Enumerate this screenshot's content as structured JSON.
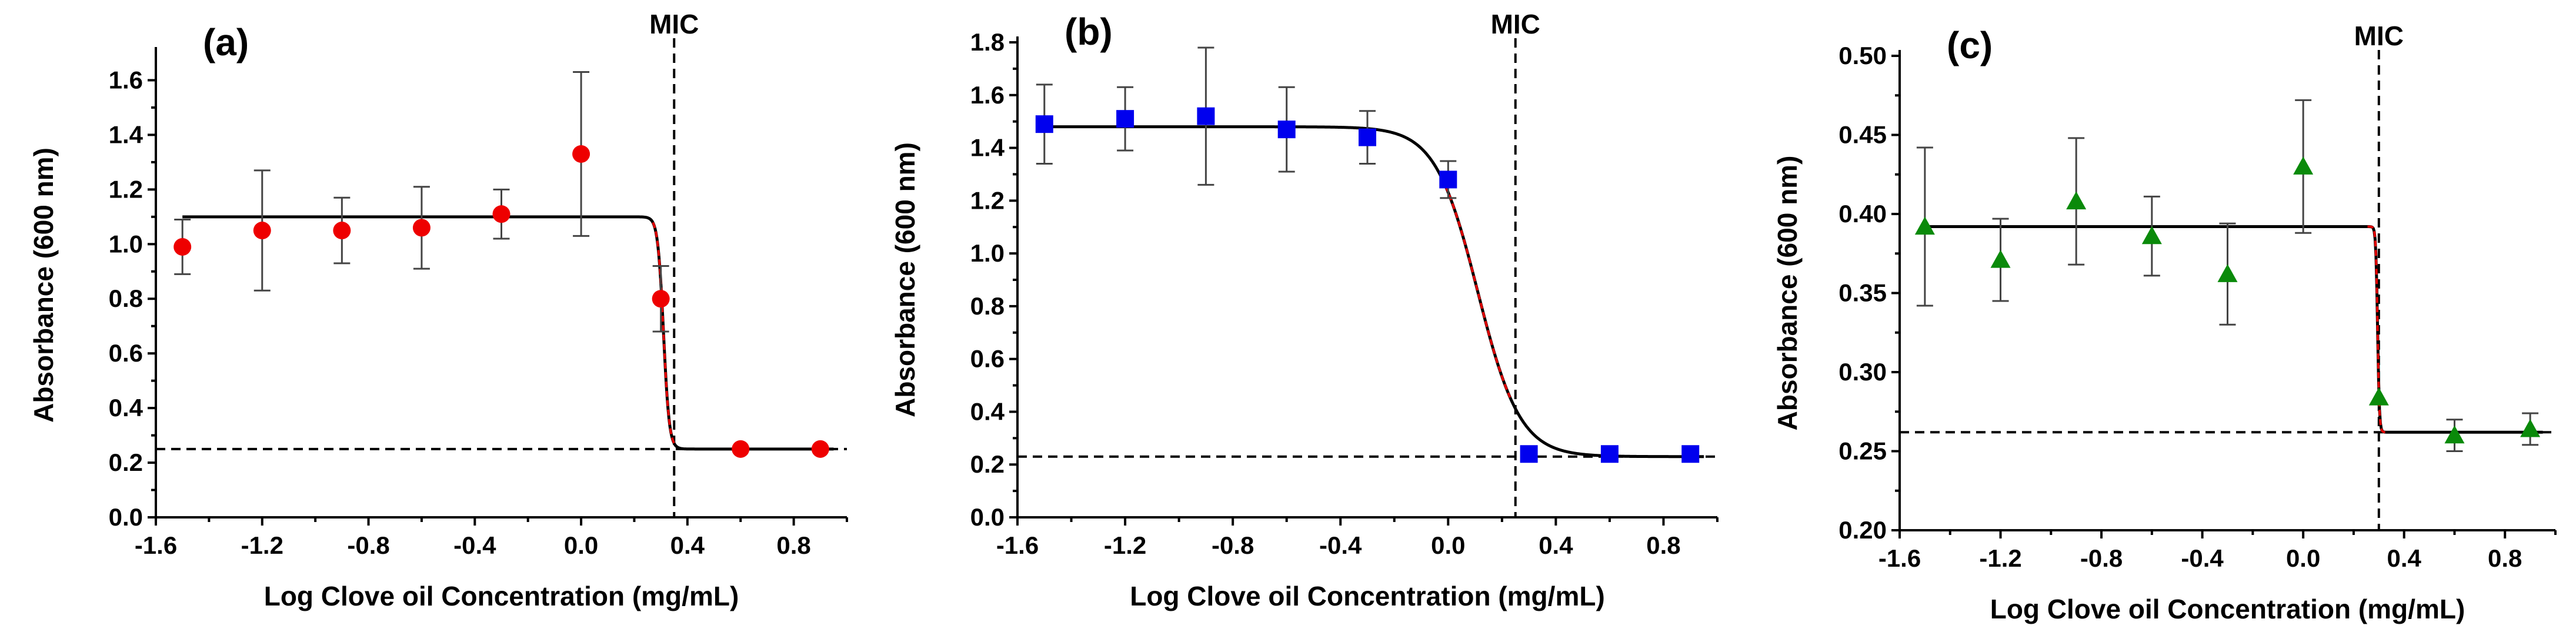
{
  "chart_data": [
    {
      "type": "scatter",
      "panel": "(a)",
      "marker": "circle",
      "color": "#ee0000",
      "xlabel": "Log Clove oil Concentration (mg/mL)",
      "ylabel": "Absorbance (600 nm)",
      "xlim": [
        -1.6,
        1.0
      ],
      "ylim": [
        0.0,
        1.7
      ],
      "xticks": [
        -1.6,
        -1.2,
        -0.8,
        -0.4,
        0.0,
        0.4,
        0.8
      ],
      "xtick_labels": [
        "-1.6",
        "-1.2",
        "-0.8",
        "-0.4",
        "0.0",
        "0.4",
        "0.8"
      ],
      "yticks": [
        0.0,
        0.2,
        0.4,
        0.6,
        0.8,
        1.0,
        1.2,
        1.4,
        1.6
      ],
      "ytick_labels": [
        "0.0",
        "0.2",
        "0.4",
        "0.6",
        "0.8",
        "1.0",
        "1.2",
        "1.4",
        "1.6"
      ],
      "x": [
        -1.5,
        -1.2,
        -0.9,
        -0.6,
        -0.3,
        0.0,
        0.3,
        0.6,
        0.9
      ],
      "y": [
        0.99,
        1.05,
        1.05,
        1.06,
        1.11,
        1.33,
        0.8,
        0.25,
        0.25
      ],
      "err": [
        0.1,
        0.22,
        0.12,
        0.15,
        0.09,
        0.3,
        0.12,
        0.0,
        0.0
      ],
      "fit": {
        "top": 1.1,
        "bottom": 0.25,
        "logEC50": 0.31,
        "hill": 40,
        "x_start": -1.5,
        "x_end": 0.95
      },
      "mic_x": 0.35,
      "mic_label": "MIC",
      "baseline_y": 0.25
    },
    {
      "type": "scatter",
      "panel": "(b)",
      "marker": "square",
      "color": "#0000ee",
      "xlabel": "Log Clove oil Concentration (mg/mL)",
      "ylabel": "Absorbance (600 nm)",
      "xlim": [
        -1.6,
        1.0
      ],
      "ylim": [
        0.0,
        1.8
      ],
      "xticks": [
        -1.6,
        -1.2,
        -0.8,
        -0.4,
        0.0,
        0.4,
        0.8
      ],
      "xtick_labels": [
        "-1.6",
        "-1.2",
        "-0.8",
        "-0.4",
        "0.0",
        "0.4",
        "0.8"
      ],
      "yticks": [
        0.0,
        0.2,
        0.4,
        0.6,
        0.8,
        1.0,
        1.2,
        1.4,
        1.6,
        1.8
      ],
      "ytick_labels": [
        "0.0",
        "0.2",
        "0.4",
        "0.6",
        "0.8",
        "1.0",
        "1.2",
        "1.4",
        "1.6",
        "1.8"
      ],
      "x": [
        -1.5,
        -1.2,
        -0.9,
        -0.6,
        -0.3,
        0.0,
        0.3,
        0.6,
        0.9
      ],
      "y": [
        1.49,
        1.51,
        1.52,
        1.47,
        1.44,
        1.28,
        0.24,
        0.24,
        0.24
      ],
      "err": [
        0.15,
        0.12,
        0.26,
        0.16,
        0.1,
        0.07,
        0.0,
        0.0,
        0.0
      ],
      "fit": {
        "top": 1.48,
        "bottom": 0.23,
        "logEC50": 0.11,
        "hill": 5.5,
        "x_start": -1.5,
        "x_end": 0.95
      },
      "mic_x": 0.25,
      "mic_label": "MIC",
      "baseline_y": 0.23
    },
    {
      "type": "scatter",
      "panel": "(c)",
      "marker": "triangle",
      "color": "#0a8a0a",
      "xlabel": "Log Clove oil Concentration (mg/mL)",
      "ylabel": "Absorbance (600 nm)",
      "xlim": [
        -1.6,
        1.0
      ],
      "ylim": [
        0.2,
        0.5
      ],
      "xticks": [
        -1.6,
        -1.2,
        -0.8,
        -0.4,
        0.0,
        0.4,
        0.8
      ],
      "xtick_labels": [
        "-1.6",
        "-1.2",
        "-0.8",
        "-0.4",
        "0.0",
        "0.4",
        "0.8"
      ],
      "yticks": [
        0.2,
        0.25,
        0.3,
        0.35,
        0.4,
        0.45,
        0.5
      ],
      "ytick_labels": [
        "0.20",
        "0.25",
        "0.30",
        "0.35",
        "0.40",
        "0.45",
        "0.50"
      ],
      "x": [
        -1.5,
        -1.2,
        -0.9,
        -0.6,
        -0.3,
        0.0,
        0.3,
        0.6,
        0.9
      ],
      "y": [
        0.392,
        0.371,
        0.408,
        0.386,
        0.362,
        0.43,
        0.284,
        0.26,
        0.264
      ],
      "err": [
        0.05,
        0.026,
        0.04,
        0.025,
        0.032,
        0.042,
        0.0,
        0.01,
        0.01
      ],
      "fit": {
        "top": 0.392,
        "bottom": 0.262,
        "logEC50": 0.295,
        "hill": 120,
        "x_start": -1.5,
        "x_end": 0.95
      },
      "mic_x": 0.3,
      "mic_label": "MIC",
      "baseline_y": 0.262
    }
  ]
}
